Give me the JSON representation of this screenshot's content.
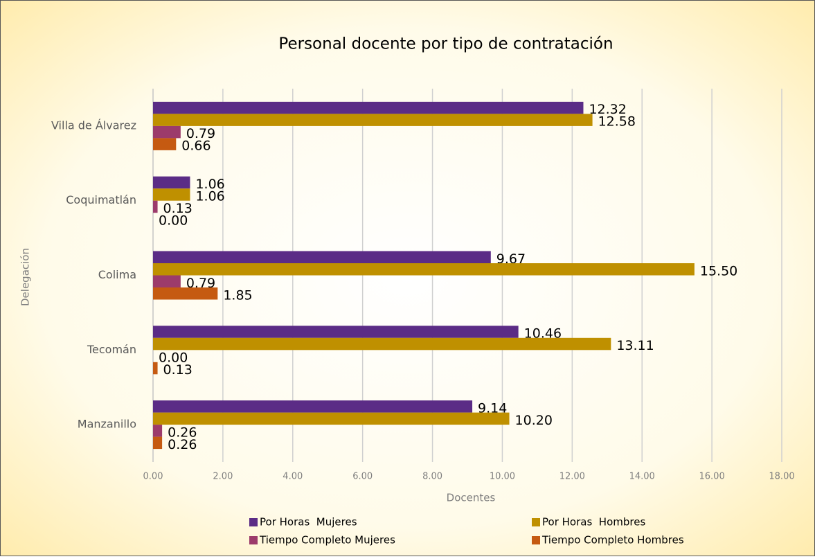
{
  "chart_data": {
    "type": "hbar",
    "title": "Personal docente por tipo de contratación",
    "x_label": "Docentes",
    "y_label": "Delegación",
    "categories": [
      "Villa de Álvarez",
      "Coquimatlán",
      "Colima",
      "Tecomán",
      "Manzanillo"
    ],
    "series": [
      {
        "name": "Por Horas  Mujeres",
        "color": "#5b2c86",
        "values": [
          12.32,
          1.06,
          9.67,
          10.46,
          9.14
        ],
        "value_labels": [
          "12.32",
          "1.06",
          "9.67",
          "10.46",
          "9.14"
        ]
      },
      {
        "name": "Por Horas  Hombres",
        "color": "#bf9000",
        "values": [
          12.58,
          1.06,
          15.5,
          13.11,
          10.2
        ],
        "value_labels": [
          "12.58",
          "1.06",
          "15.50",
          "13.11",
          "10.20"
        ]
      },
      {
        "name": "Tiempo Completo Mujeres",
        "color": "#9c3b6b",
        "values": [
          0.79,
          0.13,
          0.79,
          0.0,
          0.26
        ],
        "value_labels": [
          "0.79",
          "0.13",
          "0.79",
          "0.00",
          "0.26"
        ]
      },
      {
        "name": "Tiempo Completo Hombres",
        "color": "#c55a11",
        "values": [
          0.66,
          0.0,
          1.85,
          0.13,
          0.26
        ],
        "value_labels": [
          "0.66",
          "0.00",
          "1.85",
          "0.13",
          "0.26"
        ]
      }
    ],
    "xlim": [
      0,
      18
    ],
    "xticks": [
      {
        "value": 0,
        "label": "0.00"
      },
      {
        "value": 2,
        "label": "2.00"
      },
      {
        "value": 4,
        "label": "4.00"
      },
      {
        "value": 6,
        "label": "6.00"
      },
      {
        "value": 8,
        "label": "8.00"
      },
      {
        "value": 10,
        "label": "10.00"
      },
      {
        "value": 12,
        "label": "12.00"
      },
      {
        "value": 14,
        "label": "14.00"
      },
      {
        "value": 16,
        "label": "16.00"
      },
      {
        "value": 18,
        "label": "18.00"
      }
    ],
    "grid": true
  }
}
